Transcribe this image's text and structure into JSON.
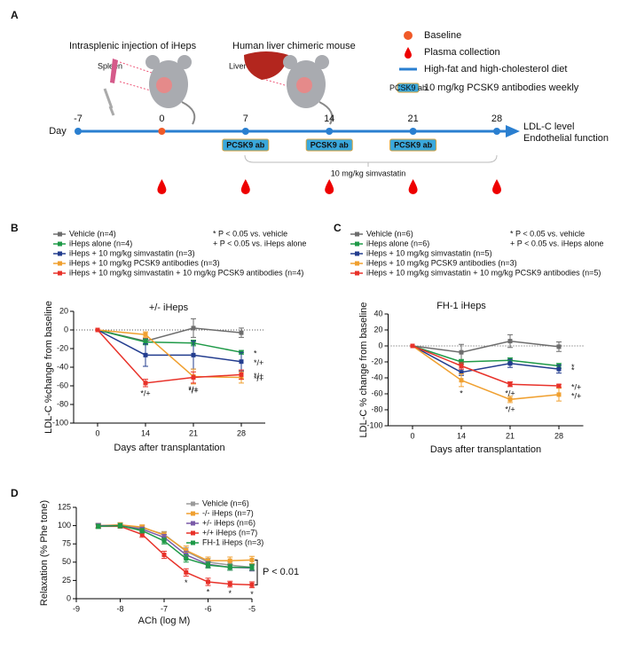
{
  "schematic": {
    "panel": "A",
    "captions": [
      "Intrasplenic injection of iHeps",
      "Human liver chimeric mouse"
    ],
    "organ_labels": [
      "Spleen",
      "Liver"
    ],
    "legend": [
      "Baseline",
      "Plasma collection",
      "High-fat and high-cholesterol diet",
      "10 mg/kg PCSK9 antibodies weekly"
    ],
    "icon_label": "PCSK9 ab",
    "timeline": {
      "unit": "Day",
      "days": [
        -7,
        0,
        7,
        14,
        21,
        28
      ],
      "endpoints": [
        "LDL-C level",
        "Endothelial function"
      ],
      "treatment": "PCSK9 ab",
      "simvastatin": "10 mg/kg simvastatin"
    }
  },
  "chart_data": [
    {
      "type": "line",
      "panel": "B",
      "title": "+/- iHeps",
      "x_label": "Days after transplantation",
      "y_label": "LDL-C %change from baseline",
      "categories": [
        "0",
        "14",
        "21",
        "28"
      ],
      "ylim": [
        -100,
        20
      ],
      "yticks": [
        20,
        0,
        -20,
        -40,
        -60,
        -80,
        -100
      ],
      "zero_line": true,
      "stats": [
        "* P < 0.05 vs. vehicle",
        "+ P < 0.05 vs. iHeps alone"
      ],
      "series": [
        {
          "name": "Vehicle (n=4)",
          "color": "#6d6d6d",
          "values": [
            0,
            -12,
            2,
            -3
          ],
          "errors": [
            0,
            3,
            10,
            5
          ],
          "labels": [
            null,
            null,
            null,
            null
          ]
        },
        {
          "name": "iHeps alone (n=4)",
          "color": "#1f9a48",
          "values": [
            0,
            -13,
            -14,
            -24
          ],
          "errors": [
            0,
            3,
            3,
            2
          ],
          "labels": [
            null,
            null,
            null,
            "*"
          ]
        },
        {
          "name": "iHeps + 10 mg/kg simvastatin (n=3)",
          "color": "#233d8f",
          "values": [
            0,
            -27,
            -27,
            -34
          ],
          "errors": [
            0,
            12,
            15,
            10
          ],
          "labels": [
            null,
            null,
            null,
            "*/+"
          ]
        },
        {
          "name": "iHeps + 10 mg/kg PCSK9 antibodies (n=3)",
          "color": "#f0a030",
          "values": [
            0,
            -5,
            -50,
            -51
          ],
          "errors": [
            0,
            3,
            8,
            6
          ],
          "labels": [
            null,
            null,
            "*/+",
            "*/+"
          ]
        },
        {
          "name": "iHeps + 10 mg/kg simvastatin + 10 mg/kg PCSK9 antibodies (n=4)",
          "color": "#e8322a",
          "values": [
            0,
            -57,
            -51,
            -48
          ],
          "errors": [
            0,
            4,
            6,
            5
          ],
          "labels": [
            null,
            "*/+",
            "*/+",
            "*/+"
          ]
        }
      ]
    },
    {
      "type": "line",
      "panel": "C",
      "title": "FH-1 iHeps",
      "x_label": "Days after transplantation",
      "y_label": "LDL-C % change from baseline",
      "categories": [
        "0",
        "14",
        "21",
        "28"
      ],
      "ylim": [
        -100,
        40
      ],
      "yticks": [
        40,
        20,
        0,
        -20,
        -40,
        -60,
        -80,
        -100
      ],
      "zero_line": true,
      "stats": [
        "* P < 0.05 vs. vehicle",
        "+ P < 0.05 vs. iHeps alone"
      ],
      "series": [
        {
          "name": "Vehicle (n=6)",
          "color": "#6d6d6d",
          "values": [
            0,
            -8,
            6,
            -1
          ],
          "errors": [
            0,
            10,
            8,
            6
          ],
          "labels": [
            null,
            null,
            null,
            null
          ]
        },
        {
          "name": "iHeps alone (n=6)",
          "color": "#1f9a48",
          "values": [
            0,
            -20,
            -18,
            -25
          ],
          "errors": [
            0,
            3,
            3,
            3
          ],
          "labels": [
            null,
            null,
            null,
            "*"
          ]
        },
        {
          "name": "iHeps + 10 mg/kg simvastatin (n=5)",
          "color": "#233d8f",
          "values": [
            0,
            -33,
            -22,
            -29
          ],
          "errors": [
            0,
            4,
            5,
            5
          ],
          "labels": [
            null,
            "*",
            null,
            "*"
          ]
        },
        {
          "name": "iHeps + 10 mg/kg PCSK9 antibodies (n=3)",
          "color": "#f0a030",
          "values": [
            0,
            -43,
            -67,
            -61
          ],
          "errors": [
            0,
            8,
            4,
            8
          ],
          "labels": [
            null,
            "*",
            "*/+",
            "*/+"
          ]
        },
        {
          "name": "iHeps + 10 mg/kg simvastatin + 10 mg/kg PCSK9 antibodies (n=5)",
          "color": "#e8322a",
          "values": [
            0,
            -25,
            -48,
            -50
          ],
          "errors": [
            0,
            4,
            3,
            2
          ],
          "labels": [
            null,
            null,
            "*/+",
            "*/+"
          ]
        }
      ]
    },
    {
      "type": "line",
      "panel": "D",
      "x_label": "ACh (log M)",
      "y_label": "Relaxation (% Phe tone)",
      "annotation": "P < 0.01",
      "xlim": [
        -9,
        -5
      ],
      "xticks": [
        -9,
        -8,
        -7,
        -6,
        -5
      ],
      "ylim": [
        0,
        125
      ],
      "yticks": [
        0,
        25,
        50,
        75,
        100,
        125
      ],
      "x": [
        -8.5,
        -8,
        -7.5,
        -7,
        -6.5,
        -6,
        -5.5,
        -5
      ],
      "series": [
        {
          "name": "Vehicle (n=6)",
          "color": "#9a9a9a",
          "values": [
            100,
            100,
            97,
            88,
            65,
            50,
            46,
            43
          ],
          "errors": [
            3,
            3,
            3,
            4,
            5,
            5,
            4,
            4
          ],
          "labels": [
            null,
            null,
            null,
            null,
            null,
            null,
            null,
            null
          ]
        },
        {
          "name": "-/- iHeps (n=7)",
          "color": "#f0a030",
          "values": [
            100,
            101,
            98,
            87,
            66,
            52,
            52,
            53
          ],
          "errors": [
            3,
            3,
            3,
            4,
            6,
            5,
            5,
            5
          ],
          "labels": [
            null,
            null,
            null,
            null,
            null,
            null,
            null,
            null
          ]
        },
        {
          "name": "+/- iHeps (n=6)",
          "color": "#7a5aa8",
          "values": [
            100,
            100,
            95,
            84,
            60,
            47,
            43,
            42
          ],
          "errors": [
            3,
            3,
            3,
            4,
            5,
            4,
            4,
            4
          ],
          "labels": [
            null,
            null,
            null,
            null,
            null,
            null,
            null,
            null
          ]
        },
        {
          "name": "+/+ iHeps (n=7)",
          "color": "#e8322a",
          "values": [
            99,
            99,
            88,
            60,
            36,
            23,
            20,
            19
          ],
          "errors": [
            2,
            2,
            4,
            5,
            5,
            5,
            4,
            4
          ],
          "labels": [
            null,
            null,
            null,
            null,
            "*",
            "*",
            "*",
            "*"
          ]
        },
        {
          "name": "FH-1 iHeps (n=3)",
          "color": "#1f9a48",
          "values": [
            99,
            100,
            93,
            79,
            55,
            46,
            43,
            43
          ],
          "errors": [
            3,
            3,
            3,
            4,
            5,
            4,
            4,
            4
          ],
          "labels": [
            null,
            null,
            null,
            null,
            null,
            null,
            null,
            null
          ]
        }
      ]
    }
  ]
}
